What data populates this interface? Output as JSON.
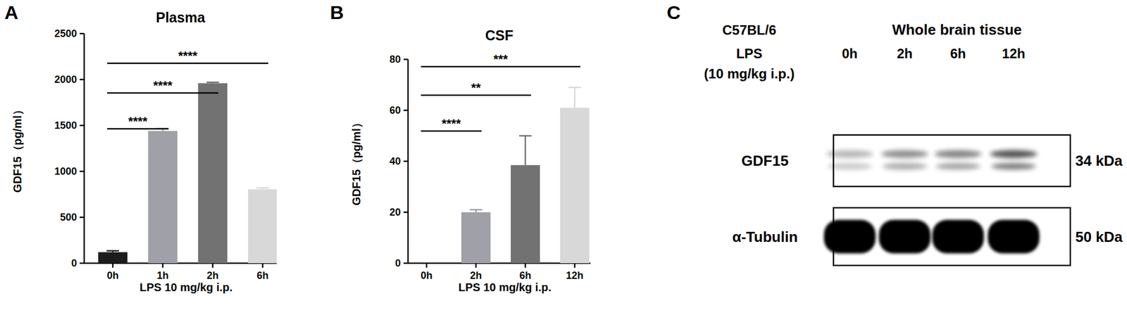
{
  "chart_data": [
    {
      "type": "bar",
      "panel": "A",
      "title": "Plasma",
      "y_label": "GDF15（pg/ml）",
      "x_label": "LPS 10 mg/kg i.p.",
      "categories": [
        "0h",
        "1h",
        "2h",
        "6h"
      ],
      "values": [
        120,
        1440,
        1960,
        805
      ],
      "errors": [
        15,
        25,
        10,
        15
      ],
      "colors": [
        "#1c1c1c",
        "#a0a0a8",
        "#727272",
        "#d8d8d8"
      ],
      "ylim": [
        0,
        2500
      ],
      "yticks": [
        0,
        500,
        1000,
        1500,
        2000,
        2500
      ],
      "grid": false,
      "annotations": [
        {
          "from": "0h",
          "to": "1h",
          "text": "****"
        },
        {
          "from": "0h",
          "to": "2h",
          "text": "****"
        },
        {
          "from": "0h",
          "to": "6h",
          "text": "****"
        }
      ]
    },
    {
      "type": "bar",
      "panel": "B",
      "title": "CSF",
      "y_label": "GDF15（pg/ml）",
      "x_label": "LPS 10 mg/kg i.p.",
      "categories": [
        "0h",
        "2h",
        "6h",
        "12h"
      ],
      "values": [
        0,
        20,
        38.5,
        61
      ],
      "errors": [
        0,
        1,
        11.5,
        8
      ],
      "colors": [
        "#1c1c1c",
        "#a0a0a8",
        "#727272",
        "#d8d8d8"
      ],
      "ylim": [
        0,
        80
      ],
      "yticks": [
        0,
        20,
        40,
        60,
        80
      ],
      "grid": false,
      "annotations": [
        {
          "from": "0h",
          "to": "2h",
          "text": "****"
        },
        {
          "from": "0h",
          "to": "6h",
          "text": "**"
        },
        {
          "from": "0h",
          "to": "12h",
          "text": "***"
        }
      ]
    },
    {
      "type": "blot",
      "panel": "C",
      "strain": "C57BL/6",
      "treatment": [
        "LPS",
        "(10 mg/kg i.p.)"
      ],
      "title": "Whole brain tissue",
      "lanes": [
        "0h",
        "2h",
        "6h",
        "12h"
      ],
      "rows": [
        {
          "name": "GDF15",
          "size": "34 kDa"
        },
        {
          "name": "α-Tubulin",
          "size": "50 kDa"
        }
      ]
    }
  ]
}
